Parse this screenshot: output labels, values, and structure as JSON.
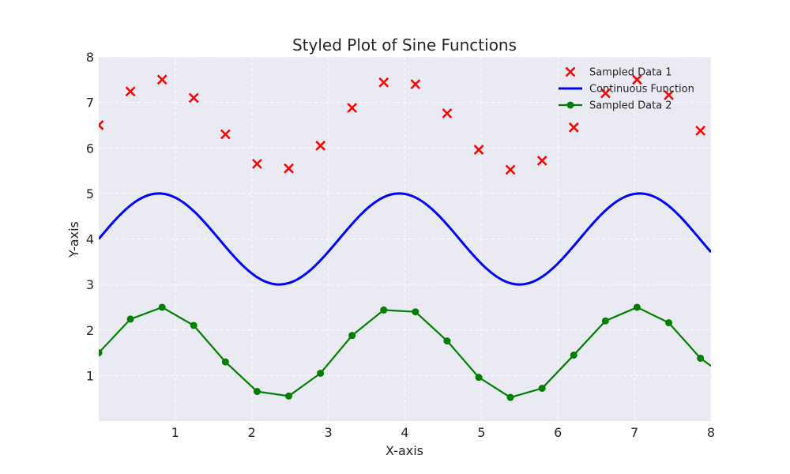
{
  "chart_data": {
    "type": "line",
    "title": "Styled Plot of Sine Functions",
    "xlabel": "X-axis",
    "ylabel": "Y-axis",
    "xlim": [
      0,
      8
    ],
    "ylim": [
      0,
      8
    ],
    "xticks": [
      1,
      2,
      3,
      4,
      5,
      6,
      7,
      8
    ],
    "yticks": [
      1,
      2,
      3,
      4,
      5,
      6,
      7,
      8
    ],
    "grid": true,
    "legend_position": "top-right",
    "colors": {
      "background": "#eaeaf2",
      "scatter": "#ff0000",
      "continuous": "#0000ff",
      "sampled2": "#008000"
    },
    "series": [
      {
        "name": "Sampled Data 1",
        "kind": "scatter",
        "marker": "x",
        "x": [
          0.0,
          0.414,
          0.828,
          1.241,
          1.655,
          2.069,
          2.483,
          2.897,
          3.31,
          3.724,
          4.138,
          4.552,
          4.966,
          5.379,
          5.793,
          6.207,
          6.621,
          7.034,
          7.448,
          7.862
        ],
        "y": [
          6.5,
          7.24,
          7.5,
          7.1,
          6.3,
          5.65,
          5.55,
          6.05,
          6.88,
          7.44,
          7.4,
          6.76,
          5.96,
          5.52,
          5.72,
          6.45,
          7.2,
          7.5,
          7.16,
          6.38
        ]
      },
      {
        "name": "Continuous Function",
        "kind": "line",
        "function": "4 + sin(2x)",
        "samples": 200
      },
      {
        "name": "Sampled Data 2",
        "kind": "line-marker",
        "marker": "o",
        "x": [
          0.0,
          0.414,
          0.828,
          1.241,
          1.655,
          2.069,
          2.483,
          2.897,
          3.31,
          3.724,
          4.138,
          4.552,
          4.966,
          5.379,
          5.793,
          6.207,
          6.621,
          7.034,
          7.448,
          7.862,
          8.0
        ],
        "y": [
          1.5,
          2.24,
          2.5,
          2.1,
          1.3,
          0.65,
          0.55,
          1.05,
          1.88,
          2.44,
          2.4,
          1.76,
          0.96,
          0.52,
          0.72,
          1.45,
          2.2,
          2.5,
          2.16,
          1.38,
          1.21
        ]
      }
    ]
  }
}
